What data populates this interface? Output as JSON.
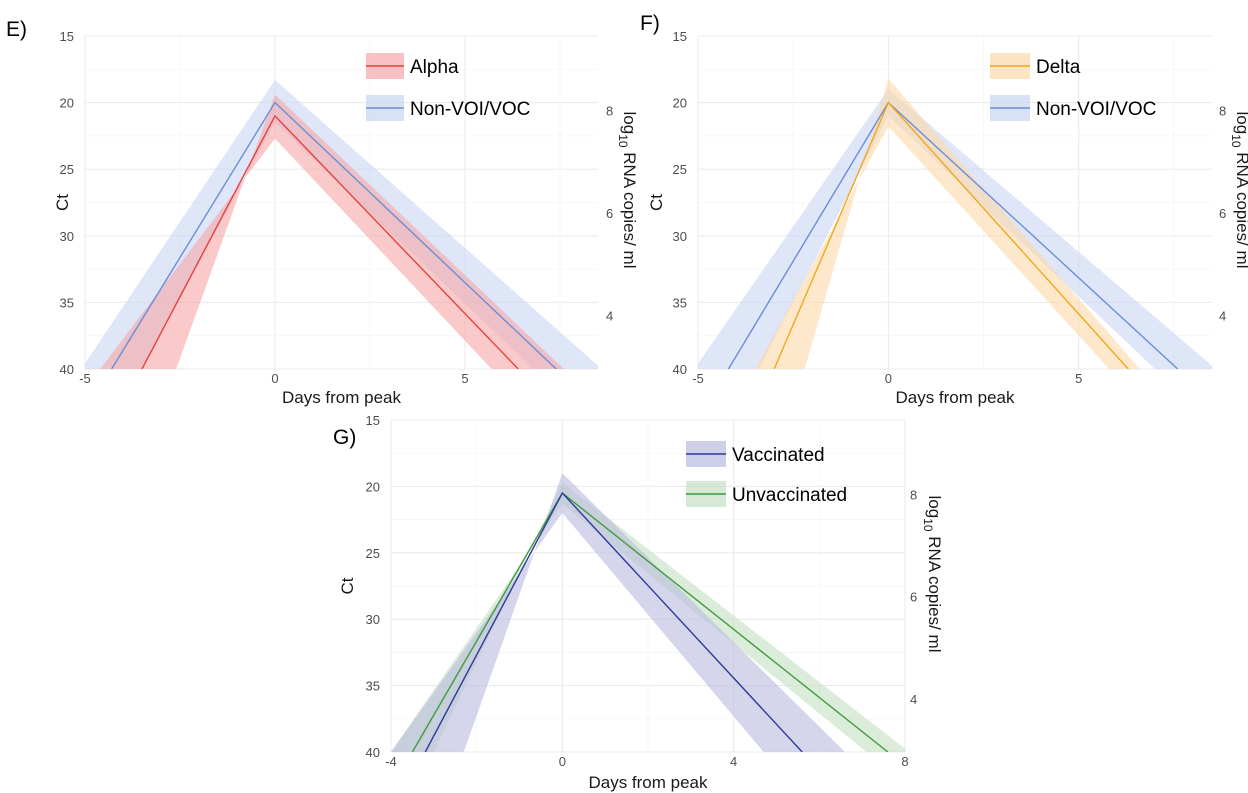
{
  "chart_data": [
    {
      "panel_label": "E)",
      "type": "line",
      "xlabel": "Days from peak",
      "ylabel": "Ct",
      "y2label_main": "log",
      "y2label_sub": "10",
      "y2label_rest": " RNA copies/ ml",
      "xlim": [
        -5,
        8.5
      ],
      "ylim": [
        15,
        40
      ],
      "y_reversed": true,
      "x_ticks": [
        -5,
        0,
        5
      ],
      "y_ticks": [
        15,
        20,
        25,
        30,
        35,
        40
      ],
      "y2_ticks": [
        8,
        6,
        4
      ],
      "legend_position": "top-right",
      "series": [
        {
          "name": "Alpha",
          "color": "#e8413e",
          "fill": "#f7a7a9",
          "x": [
            -3.5,
            0,
            6.4
          ],
          "y": [
            40,
            21,
            40
          ],
          "band_upper_x": [
            -2.6,
            0,
            7.6
          ],
          "band_upper_y": [
            40,
            19.4,
            40
          ],
          "band_lower_x": [
            -4.6,
            0,
            5.7
          ],
          "band_lower_y": [
            40,
            22.7,
            40
          ]
        },
        {
          "name": "Non-VOI/VOC",
          "color": "#6b8ed6",
          "fill": "#c8d6f4",
          "x": [
            -4.3,
            0,
            7.4
          ],
          "y": [
            40,
            20,
            40
          ],
          "band_upper_x": [
            -5.1,
            0,
            8.6
          ],
          "band_upper_y": [
            40,
            18.3,
            40
          ],
          "band_lower_x": [
            -3.5,
            0,
            6.8
          ],
          "band_lower_y": [
            40,
            21.5,
            40
          ]
        }
      ]
    },
    {
      "panel_label": "F)",
      "type": "line",
      "xlabel": "Days from peak",
      "ylabel": "Ct",
      "y2label_main": "log",
      "y2label_sub": "10",
      "y2label_rest": " RNA copies/ ml",
      "xlim": [
        -5,
        8.5
      ],
      "ylim": [
        15,
        40
      ],
      "y_reversed": true,
      "x_ticks": [
        -5,
        0,
        5
      ],
      "y_ticks": [
        15,
        20,
        25,
        30,
        35,
        40
      ],
      "y2_ticks": [
        8,
        6,
        4
      ],
      "legend_position": "top-right",
      "series": [
        {
          "name": "Delta",
          "color": "#f2a81d",
          "fill": "#fbd9a8",
          "x": [
            -3.0,
            0,
            6.3
          ],
          "y": [
            40,
            20,
            40
          ],
          "band_upper_x": [
            -2.2,
            0,
            6.6
          ],
          "band_upper_y": [
            40,
            18.2,
            40
          ],
          "band_lower_x": [
            -3.5,
            0,
            5.8
          ],
          "band_lower_y": [
            40,
            21.8,
            40
          ]
        },
        {
          "name": "Non-VOI/VOC",
          "color": "#6b8ed6",
          "fill": "#c8d6f4",
          "x": [
            -4.2,
            0,
            7.6
          ],
          "y": [
            40,
            20,
            40
          ],
          "band_upper_x": [
            -5.1,
            0,
            8.6
          ],
          "band_upper_y": [
            40,
            19.0,
            40
          ],
          "band_lower_x": [
            -3.4,
            0,
            7.0
          ],
          "band_lower_y": [
            40,
            21.0,
            40
          ]
        }
      ]
    },
    {
      "panel_label": "G)",
      "type": "line",
      "xlabel": "Days from peak",
      "ylabel": "Ct",
      "y2label_main": "log",
      "y2label_sub": "10",
      "y2label_rest": " RNA copies/ ml",
      "xlim": [
        -4,
        8
      ],
      "ylim": [
        15,
        40
      ],
      "y_reversed": true,
      "x_ticks": [
        -4,
        0,
        4,
        8
      ],
      "y_ticks": [
        15,
        20,
        25,
        30,
        35,
        40
      ],
      "y2_ticks": [
        8,
        6,
        4
      ],
      "legend_position": "top-right",
      "series": [
        {
          "name": "Vaccinated",
          "color": "#2e3a9c",
          "fill": "#b9bbde",
          "x": [
            -3.2,
            0,
            5.6
          ],
          "y": [
            40,
            20.5,
            40
          ],
          "band_upper_x": [
            -2.3,
            0,
            6.6
          ],
          "band_upper_y": [
            40,
            19.0,
            40
          ],
          "band_lower_x": [
            -4.0,
            0,
            4.7
          ],
          "band_lower_y": [
            40,
            22.0,
            40
          ]
        },
        {
          "name": "Unvaccinated",
          "color": "#3f9b3f",
          "fill": "#c5dfc2",
          "x": [
            -3.5,
            0,
            7.6
          ],
          "y": [
            40,
            20.5,
            40
          ],
          "band_upper_x": [
            -3.0,
            0,
            8.1
          ],
          "band_upper_y": [
            40,
            19.7,
            40
          ],
          "band_lower_x": [
            -4.0,
            0,
            7.1
          ],
          "band_lower_y": [
            40,
            21.3,
            40
          ]
        }
      ]
    }
  ]
}
